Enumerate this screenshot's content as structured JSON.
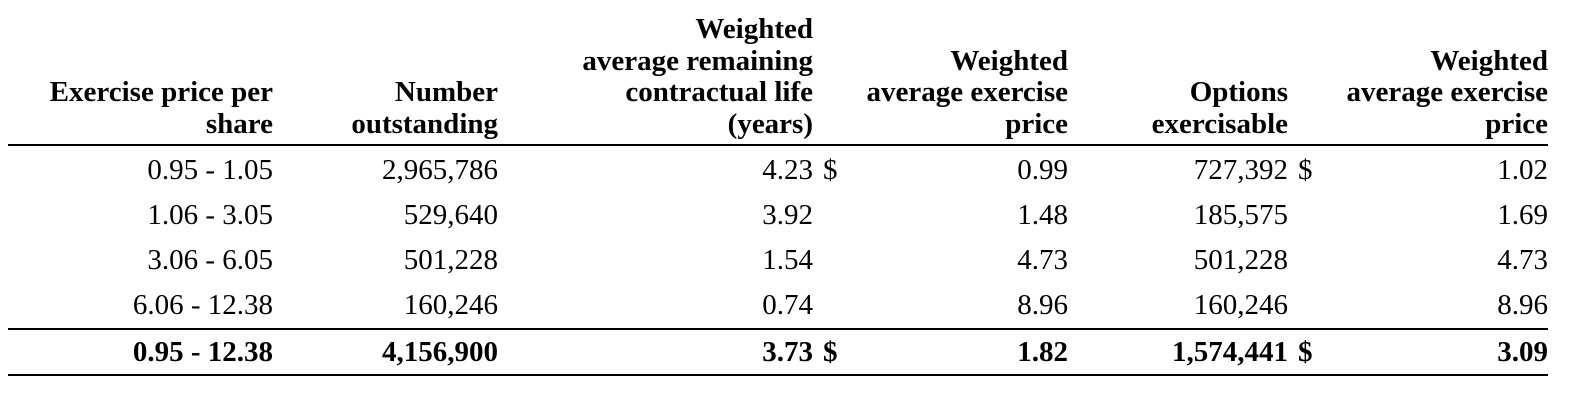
{
  "headers": {
    "exercise_price": [
      "Exercise price per",
      "share"
    ],
    "number_outstanding": [
      "Number",
      "outstanding"
    ],
    "remaining_life": [
      "Weighted",
      "average remaining",
      "contractual life",
      "(years)"
    ],
    "avg_price_outstanding": [
      "Weighted",
      "average exercise",
      "price"
    ],
    "options_exercisable": [
      "Options",
      "exercisable"
    ],
    "avg_price_exercisable": [
      "Weighted",
      "average exercise",
      "price"
    ]
  },
  "currency_symbol": "$",
  "rows": [
    {
      "range": "0.95 - 1.05",
      "outstanding": "2,965,786",
      "life": "4.23",
      "cur1": "$",
      "price_out": "0.99",
      "exercisable": "727,392",
      "cur2": "$",
      "price_ex": "1.02"
    },
    {
      "range": "1.06 - 3.05",
      "outstanding": "529,640",
      "life": "3.92",
      "cur1": "",
      "price_out": "1.48",
      "exercisable": "185,575",
      "cur2": "",
      "price_ex": "1.69"
    },
    {
      "range": "3.06 - 6.05",
      "outstanding": "501,228",
      "life": "1.54",
      "cur1": "",
      "price_out": "4.73",
      "exercisable": "501,228",
      "cur2": "",
      "price_ex": "4.73"
    },
    {
      "range": "6.06 - 12.38",
      "outstanding": "160,246",
      "life": "0.74",
      "cur1": "",
      "price_out": "8.96",
      "exercisable": "160,246",
      "cur2": "",
      "price_ex": "8.96"
    }
  ],
  "total": {
    "range": "0.95 - 12.38",
    "outstanding": "4,156,900",
    "life": "3.73",
    "cur1": "$",
    "price_out": "1.82",
    "exercisable": "1,574,441",
    "cur2": "$",
    "price_ex": "3.09"
  }
}
